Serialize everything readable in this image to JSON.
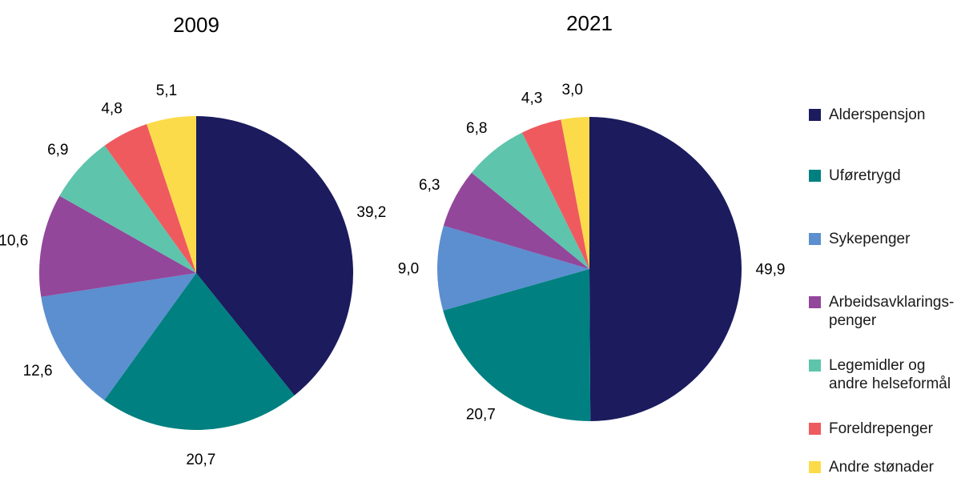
{
  "chart_data": [
    {
      "type": "pie",
      "title": "2009",
      "categories": [
        "Alderspensjon",
        "Uføretrygd",
        "Sykepenger",
        "Arbeidsavklarings-\npenger",
        "Legemidler og\nandre helseformål",
        "Foreldrepenger",
        "Andre stønader"
      ],
      "values": [
        39.2,
        20.7,
        12.6,
        10.6,
        6.9,
        4.8,
        5.1
      ],
      "value_labels": [
        "39,2",
        "20,7",
        "12,6",
        "10,6",
        "6,9",
        "4,8",
        "5,1"
      ]
    },
    {
      "type": "pie",
      "title": "2021",
      "categories": [
        "Alderspensjon",
        "Uføretrygd",
        "Sykepenger",
        "Arbeidsavklarings-\npenger",
        "Legemidler og\nandre helseformål",
        "Foreldrepenger",
        "Andre stønader"
      ],
      "values": [
        49.9,
        20.7,
        9.0,
        6.3,
        6.8,
        4.3,
        3.0
      ],
      "value_labels": [
        "49,9",
        "20,7",
        "9,0",
        "6,3",
        "6,8",
        "4,3",
        "3,0"
      ]
    }
  ],
  "legend": {
    "placement": "right",
    "items": [
      {
        "label": "Alderspensjon",
        "color": "#1b1b5e"
      },
      {
        "label": "Uføretrygd",
        "color": "#008080"
      },
      {
        "label": "Sykepenger",
        "color": "#5b8fcf"
      },
      {
        "label": "Arbeidsavklarings-\npenger",
        "color": "#92479b"
      },
      {
        "label": "Legemidler og\nandre helseformål",
        "color": "#5ec4ac"
      },
      {
        "label": "Foreldrepenger",
        "color": "#ef5a5f"
      },
      {
        "label": "Andre stønader",
        "color": "#fcdb4a"
      }
    ]
  }
}
